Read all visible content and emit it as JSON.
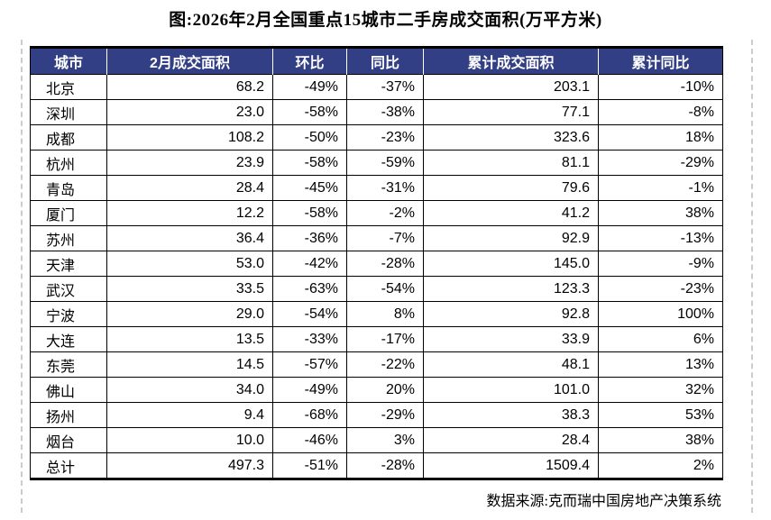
{
  "title": "图:2026年2月全国重点15城市二手房成交面积(万平方米)",
  "footer": {
    "source": "数据来源:克而瑞中国房地产决策系统"
  },
  "colors": {
    "header_bg": "#333F84",
    "header_text": "#ffffff",
    "grid_line": "#000000"
  },
  "chart_data": {
    "type": "table",
    "title": "图:2026年2月全国重点15城市二手房成交面积(万平方米)",
    "unit": "万平方米",
    "columns": [
      "城市",
      "2月成交面积",
      "环比",
      "同比",
      "累计成交面积",
      "累计同比"
    ],
    "rows": [
      [
        "北京",
        "68.2",
        "-49%",
        "-37%",
        "203.1",
        "-10%"
      ],
      [
        "深圳",
        "23.0",
        "-58%",
        "-38%",
        "77.1",
        "-8%"
      ],
      [
        "成都",
        "108.2",
        "-50%",
        "-23%",
        "323.6",
        "18%"
      ],
      [
        "杭州",
        "23.9",
        "-58%",
        "-59%",
        "81.1",
        "-29%"
      ],
      [
        "青岛",
        "28.4",
        "-45%",
        "-31%",
        "79.6",
        "-1%"
      ],
      [
        "厦门",
        "12.2",
        "-58%",
        "-2%",
        "41.2",
        "38%"
      ],
      [
        "苏州",
        "36.4",
        "-36%",
        "-7%",
        "92.9",
        "-13%"
      ],
      [
        "天津",
        "53.0",
        "-42%",
        "-28%",
        "145.0",
        "-9%"
      ],
      [
        "武汉",
        "33.5",
        "-63%",
        "-54%",
        "123.3",
        "-23%"
      ],
      [
        "宁波",
        "29.0",
        "-54%",
        "8%",
        "92.8",
        "100%"
      ],
      [
        "大连",
        "13.5",
        "-33%",
        "-17%",
        "33.9",
        "6%"
      ],
      [
        "东莞",
        "14.5",
        "-57%",
        "-22%",
        "48.1",
        "13%"
      ],
      [
        "佛山",
        "34.0",
        "-49%",
        "20%",
        "101.0",
        "32%"
      ],
      [
        "扬州",
        "9.4",
        "-68%",
        "-29%",
        "38.3",
        "53%"
      ],
      [
        "烟台",
        "10.0",
        "-46%",
        "3%",
        "28.4",
        "38%"
      ],
      [
        "总计",
        "497.3",
        "-51%",
        "-28%",
        "1509.4",
        "2%"
      ]
    ],
    "source": "数据来源:克而瑞中国房地产决策系统",
    "legend_position": "none",
    "grid": true
  }
}
